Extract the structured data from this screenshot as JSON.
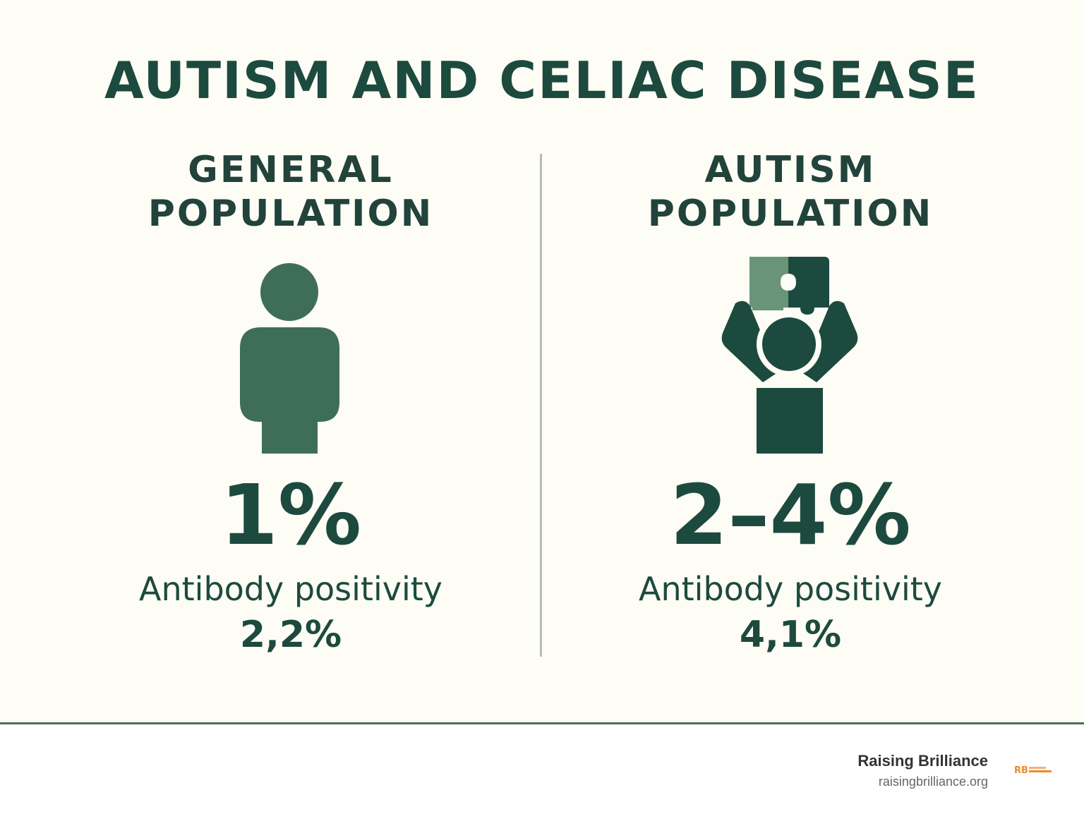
{
  "title": "AUTISM AND CELIAC DISEASE",
  "left": {
    "heading_line1": "GENERAL",
    "heading_line2": "POPULATION",
    "icon": "person-icon",
    "stat": "1%",
    "label": "Antibody positivity",
    "sub_stat": "2,2%"
  },
  "right": {
    "heading_line1": "AUTISM",
    "heading_line2": "POPULATION",
    "icon": "person-holding-puzzle-icon",
    "stat": "2–4%",
    "label": "Antibody positivity",
    "sub_stat": "4,1%"
  },
  "footer": {
    "brand_name": "Raising Brilliance",
    "brand_url": "raisingbrilliance.org",
    "logo_text": "RB RAISING BRILLIANCE"
  },
  "colors": {
    "background": "#fdfcf5",
    "primary_green": "#1d4a3e",
    "light_green": "#3f6e57",
    "puzzle_light": "#6a9478",
    "divider": "#b8bab6",
    "logo_orange": "#f08a2c"
  }
}
